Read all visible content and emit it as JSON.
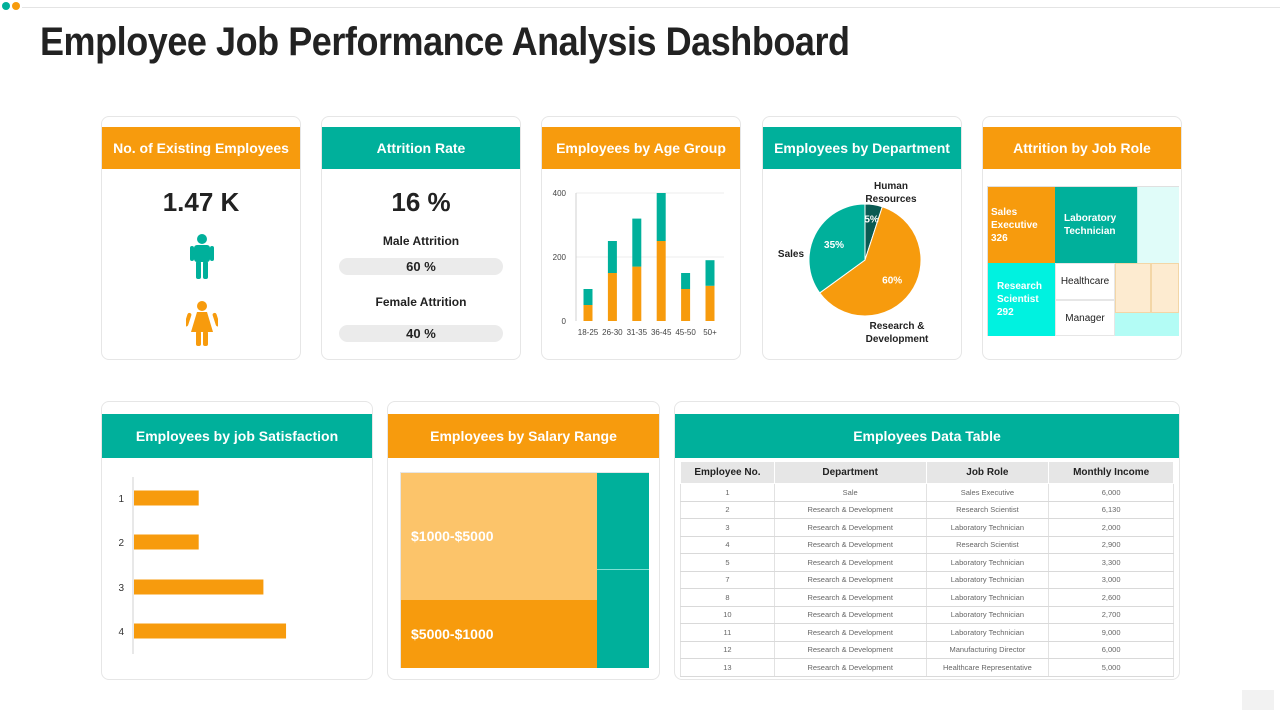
{
  "title": "Employee Job Performance Analysis Dashboard",
  "colors": {
    "orange": "#f79b0d",
    "teal": "#00b09b",
    "light_orange": "#fcc46a",
    "cyan": "#00f2e0",
    "pale_cyan": "#e0fcf9",
    "peach": "#fdebd0",
    "mint": "#b3fcf5"
  },
  "existing": {
    "header": "No. of Existing Employees",
    "value": "1.47 K",
    "icons": [
      "male-person-icon",
      "female-person-icon"
    ]
  },
  "attrition": {
    "header": "Attrition Rate",
    "value": "16 %",
    "male_label": "Male Attrition",
    "male_value": "60 %",
    "female_label": "Female Attrition",
    "female_value": "40 %"
  },
  "age_group": {
    "header": "Employees by Age Group"
  },
  "department": {
    "header": "Employees by Department"
  },
  "job_role": {
    "header": "Attrition by Job Role",
    "cells": [
      {
        "label": "Sales Executive 326"
      },
      {
        "label": "Laboratory Technician"
      },
      {
        "label": "Research Scientist 292"
      },
      {
        "label": "Healthcare"
      },
      {
        "label": "Manager"
      }
    ]
  },
  "satisfaction": {
    "header": "Employees by job Satisfaction"
  },
  "salary": {
    "header": "Employees by Salary Range",
    "labels": [
      "$1000-$5000",
      "$5000-$1000"
    ]
  },
  "table": {
    "header": "Employees Data Table",
    "columns": [
      "Employee No.",
      "Department",
      "Job Role",
      "Monthly Income"
    ],
    "rows": [
      [
        "1",
        "Sale",
        "Sales Executive",
        "6,000"
      ],
      [
        "2",
        "Research & Development",
        "Research Scientist",
        "6,130"
      ],
      [
        "3",
        "Research & Development",
        "Laboratory Technician",
        "2,000"
      ],
      [
        "4",
        "Research & Development",
        "Research Scientist",
        "2,900"
      ],
      [
        "5",
        "Research & Development",
        "Laboratory Technician",
        "3,300"
      ],
      [
        "7",
        "Research & Development",
        "Laboratory Technician",
        "3,000"
      ],
      [
        "8",
        "Research & Development",
        "Laboratory Technician",
        "2,600"
      ],
      [
        "10",
        "Research & Development",
        "Laboratory Technician",
        "2,700"
      ],
      [
        "11",
        "Research & Development",
        "Laboratory Technician",
        "9,000"
      ],
      [
        "12",
        "Research & Development",
        "Manufacturing Director",
        "6,000"
      ],
      [
        "13",
        "Research & Development",
        "Healthcare Representative",
        "5,000"
      ]
    ]
  },
  "chart_data": [
    {
      "type": "bar",
      "stacked": true,
      "categories": [
        "18-25",
        "26-30",
        "31-35",
        "36-45",
        "45-50",
        "50+"
      ],
      "series": [
        {
          "color": "#f79b0d",
          "values": [
            50,
            150,
            170,
            250,
            100,
            110
          ]
        },
        {
          "color": "#00b09b",
          "values": [
            50,
            100,
            150,
            150,
            50,
            80
          ]
        }
      ],
      "yticks": [
        0,
        200,
        400
      ],
      "ylim": [
        0,
        400
      ],
      "grid": true
    },
    {
      "type": "pie",
      "slices": [
        {
          "label": "Research & Development",
          "value": 60,
          "text": "60%",
          "color": "#f79b0d"
        },
        {
          "label": "Sales",
          "value": 35,
          "text": "35%",
          "color": "#00b09b"
        },
        {
          "label": "Human Resources",
          "value": 5,
          "text": "5%",
          "color": "#0a5a52"
        }
      ]
    },
    {
      "type": "bar",
      "orientation": "horizontal",
      "categories": [
        "1",
        "2",
        "3",
        "4"
      ],
      "values": [
        1,
        1,
        2,
        2.35
      ],
      "color": "#f79b0d"
    }
  ]
}
